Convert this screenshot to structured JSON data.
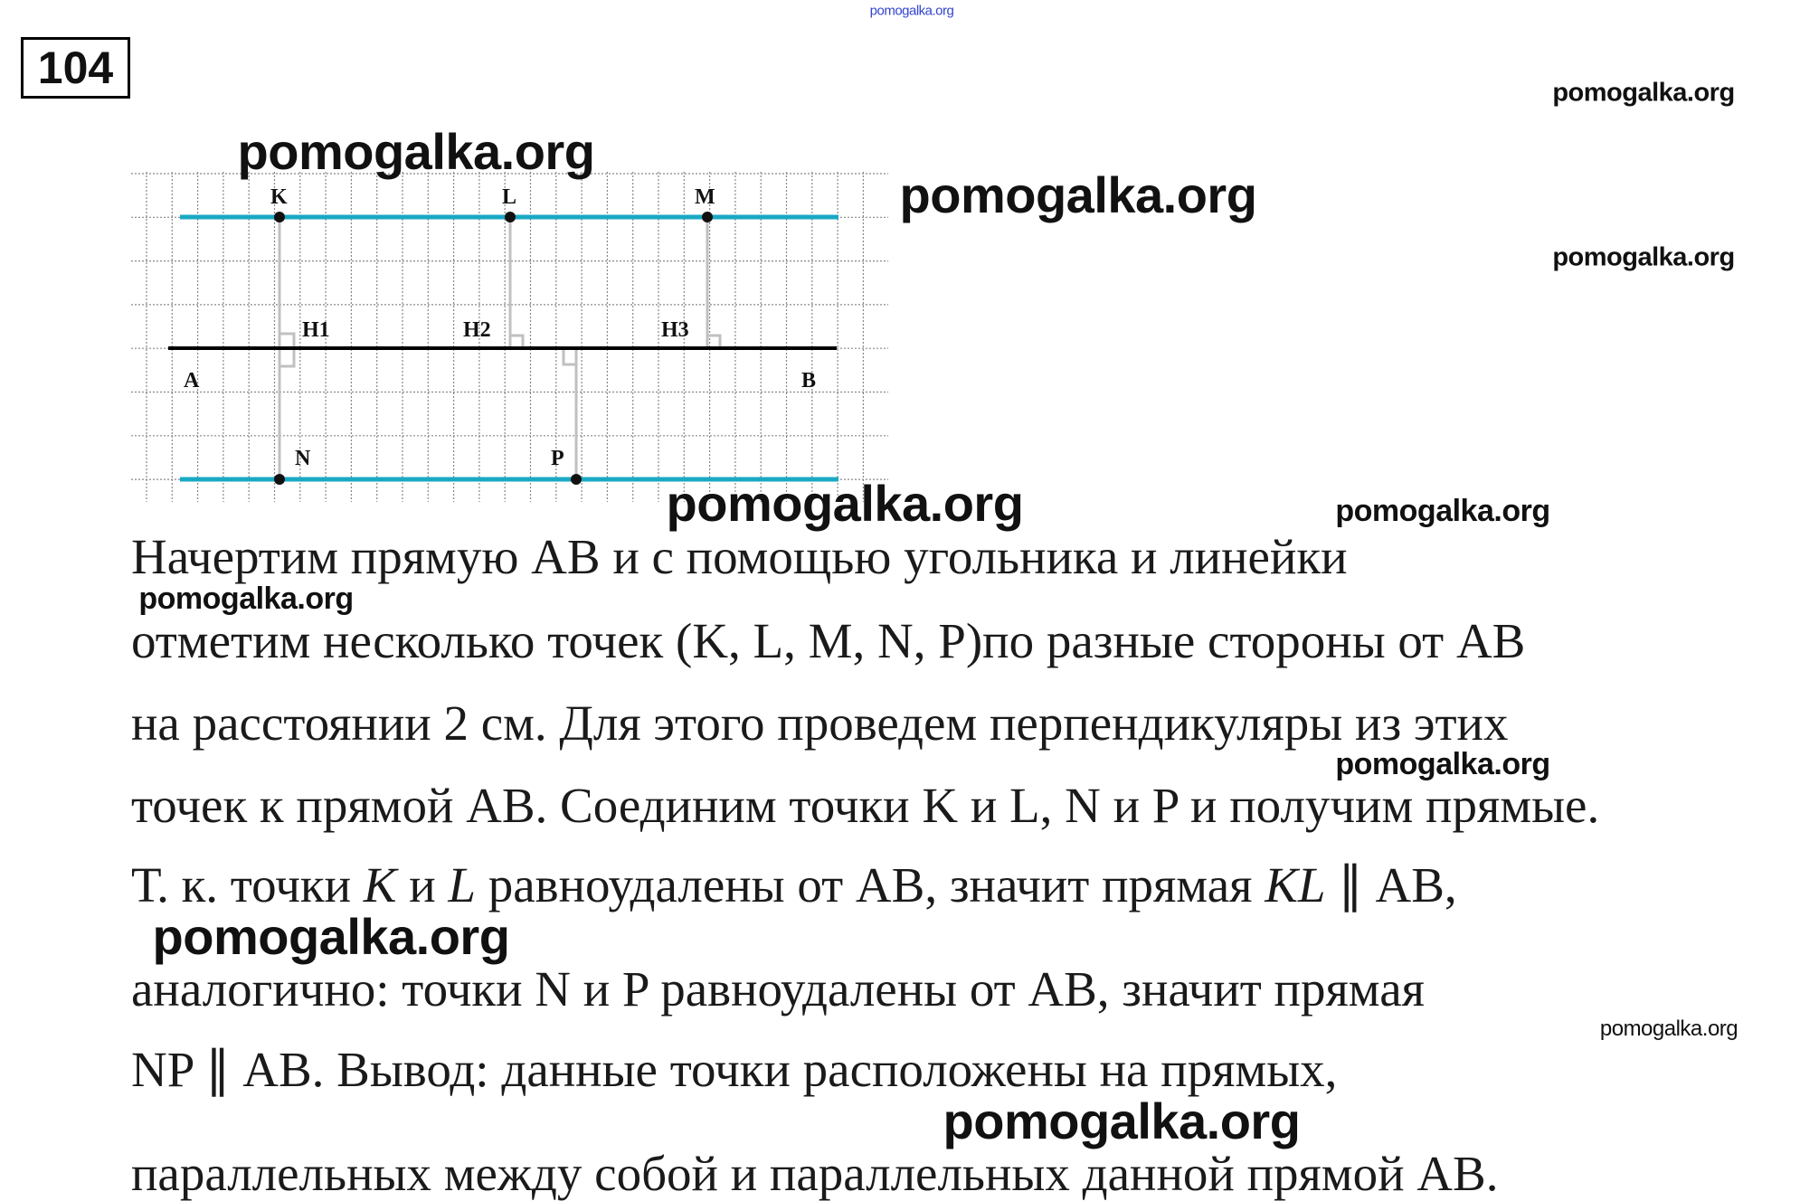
{
  "problem_number": "104",
  "diagram": {
    "points": {
      "K": "K",
      "L": "L",
      "M": "M",
      "N": "N",
      "P": "P",
      "H1": "H1",
      "H2": "H2",
      "H3": "H3",
      "A": "A",
      "B": "B"
    },
    "colors": {
      "parallel_lines": "#19a9c4",
      "ab_line": "#000000",
      "perpendiculars": "#c0c0c0",
      "grid": "#888888"
    }
  },
  "text": {
    "line1": "Начертим прямую АВ и с помощью угольника и линейки",
    "line2": "отметим несколько точек (K, L, M, N, P)по разные стороны от АВ",
    "line3": "на расстоянии 2 см. Для этого проведем перпендикуляры из этих",
    "line4": "точек к прямой АВ. Соединим точки K и L, N и P и получим прямые.",
    "line5": {
      "a": "Т. к. точки ",
      "b": "K",
      "c": " и ",
      "d": "L",
      "e": " равноудалены от АВ, значит прямая ",
      "f": "KL",
      "g": " ∥ АВ,"
    },
    "line6": "аналогично: точки N и P равноудалены от АВ, значит прямая",
    "line7": "NP ∥ АВ. Вывод: данные точки расположены на прямых,",
    "line8": "параллельных между собой и параллельных данной прямой АВ."
  },
  "watermark": "pomogalka.org"
}
